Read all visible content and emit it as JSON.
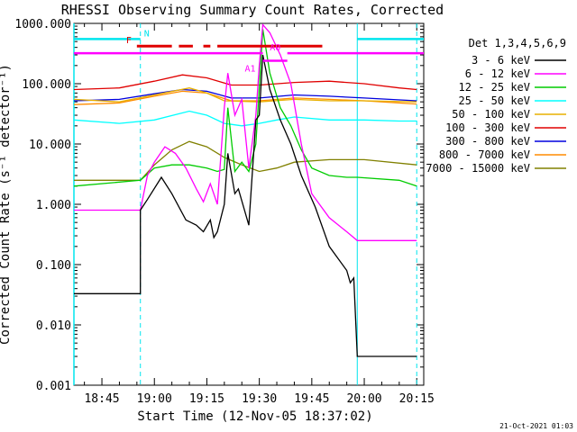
{
  "chart_data": {
    "type": "line",
    "title": "RHESSI Observing Summary Count Rates, Corrected",
    "xlabel": "Start Time (12-Nov-05 18:37:02)",
    "ylabel": "Corrected Count Rate (s⁻¹ detector⁻¹)",
    "yscale": "log",
    "ylim": [
      0.001,
      1000
    ],
    "xlim": [
      "18:37",
      "20:17"
    ],
    "x_ticks": [
      "18:45",
      "19:00",
      "19:15",
      "19:30",
      "19:45",
      "20:00",
      "20:15"
    ],
    "y_ticks": [
      "1000.000",
      "100.000",
      "10.000",
      "1.000",
      "0.100",
      "0.010",
      "0.001"
    ],
    "legend_title": "Det 1,3,4,5,6,9",
    "legend_position": "right",
    "footer": "21-Oct-2021 01:03",
    "annotations": [
      "N",
      "F",
      "A0",
      "A1"
    ],
    "flags": [
      {
        "label": "N",
        "color": "#00e5ee",
        "level": 550,
        "ranges": [
          [
            "18:37",
            "18:56"
          ],
          [
            "19:58",
            "20:17"
          ]
        ]
      },
      {
        "label": "F",
        "color": "#e00000",
        "level": 420,
        "ranges": [
          [
            "18:55",
            "19:05"
          ],
          [
            "19:07",
            "19:11"
          ],
          [
            "19:14",
            "19:16"
          ],
          [
            "19:18",
            "19:48"
          ]
        ]
      },
      {
        "label": "A0",
        "color": "#ff00ff",
        "level": 320,
        "ranges": [
          [
            "18:37",
            "19:31"
          ],
          [
            "19:38",
            "20:17"
          ]
        ]
      },
      {
        "label": "A1",
        "color": "#ff00ff",
        "level": 240,
        "ranges": [
          [
            "19:31",
            "19:38"
          ]
        ]
      }
    ],
    "attenuator_lines": [
      "18:56",
      "19:58",
      "20:15"
    ],
    "series": [
      {
        "name": "3 - 6 keV",
        "color": "#000000",
        "x": [
          "18:37",
          "18:56",
          "18:56",
          "18:58",
          "19:02",
          "19:05",
          "19:09",
          "19:12",
          "19:14",
          "19:16",
          "19:17",
          "19:18",
          "19:20",
          "19:21",
          "19:23",
          "19:24",
          "19:27",
          "19:29",
          "19:30",
          "19:31",
          "19:33",
          "19:36",
          "19:39",
          "19:42",
          "19:46",
          "19:50",
          "19:55",
          "19:56",
          "19:57",
          "19:58",
          "20:15"
        ],
        "y": [
          0.033,
          0.033,
          0.8,
          1.2,
          2.8,
          1.5,
          0.55,
          0.45,
          0.35,
          0.55,
          0.28,
          0.35,
          1.0,
          7,
          1.5,
          1.8,
          0.45,
          25,
          30,
          300,
          80,
          25,
          10,
          3,
          0.9,
          0.2,
          0.08,
          0.05,
          0.06,
          0.003,
          0.003
        ]
      },
      {
        "name": "6 - 12 keV",
        "color": "#ff00ff",
        "x": [
          "18:37",
          "18:56",
          "18:58",
          "19:00",
          "19:03",
          "19:06",
          "19:09",
          "19:12",
          "19:14",
          "19:16",
          "19:18",
          "19:20",
          "19:21",
          "19:23",
          "19:25",
          "19:27",
          "19:29",
          "19:30",
          "19:31",
          "19:33",
          "19:36",
          "19:39",
          "19:42",
          "19:45",
          "19:50",
          "19:55",
          "19:58",
          "20:05",
          "20:15"
        ],
        "y": [
          0.8,
          0.8,
          3,
          5,
          9,
          7,
          4,
          1.8,
          1.1,
          2.2,
          1.0,
          40,
          150,
          30,
          55,
          4,
          30,
          200,
          950,
          700,
          300,
          100,
          10,
          1.5,
          0.6,
          0.35,
          0.25,
          0.25,
          0.25
        ]
      },
      {
        "name": "12 - 25 keV",
        "color": "#00cc00",
        "x": [
          "18:37",
          "18:56",
          "19:00",
          "19:05",
          "19:10",
          "19:15",
          "19:18",
          "19:20",
          "19:21",
          "19:23",
          "19:25",
          "19:27",
          "19:29",
          "19:31",
          "19:33",
          "19:36",
          "19:39",
          "19:42",
          "19:45",
          "19:50",
          "19:55",
          "19:58",
          "20:10",
          "20:15"
        ],
        "y": [
          2.0,
          2.5,
          4.0,
          4.5,
          4.5,
          4.0,
          3.5,
          3.8,
          40,
          3.5,
          5,
          3.5,
          10,
          800,
          150,
          40,
          20,
          8,
          4,
          3.0,
          2.8,
          2.8,
          2.5,
          2.0
        ]
      },
      {
        "name": "25 - 50 keV",
        "color": "#00ffff",
        "x": [
          "18:37",
          "18:50",
          "19:00",
          "19:10",
          "19:15",
          "19:20",
          "19:25",
          "19:30",
          "19:35",
          "19:40",
          "19:50",
          "20:00",
          "20:10",
          "20:15"
        ],
        "y": [
          25,
          22,
          25,
          35,
          30,
          22,
          20,
          22,
          25,
          28,
          25,
          25,
          24,
          24
        ]
      },
      {
        "name": "50 - 100 keV",
        "color": "#e8b000",
        "x": [
          "18:37",
          "18:50",
          "19:00",
          "19:10",
          "19:15",
          "19:20",
          "19:30",
          "19:40",
          "19:50",
          "20:00",
          "20:15"
        ],
        "y": [
          55,
          50,
          65,
          85,
          70,
          52,
          50,
          55,
          52,
          52,
          50
        ]
      },
      {
        "name": "100 - 300 keV",
        "color": "#e00000",
        "x": [
          "18:37",
          "18:50",
          "19:00",
          "19:08",
          "19:15",
          "19:22",
          "19:30",
          "19:40",
          "19:50",
          "20:00",
          "20:10",
          "20:15"
        ],
        "y": [
          80,
          85,
          110,
          140,
          125,
          95,
          95,
          105,
          110,
          100,
          85,
          80
        ]
      },
      {
        "name": "300 - 800 keV",
        "color": "#0000dd",
        "x": [
          "18:37",
          "18:50",
          "19:00",
          "19:08",
          "19:15",
          "19:22",
          "19:30",
          "19:40",
          "19:50",
          "20:00",
          "20:15"
        ],
        "y": [
          52,
          55,
          68,
          80,
          75,
          58,
          58,
          65,
          62,
          58,
          52
        ]
      },
      {
        "name": "800 - 7000 keV",
        "color": "#ff8c00",
        "x": [
          "18:37",
          "18:50",
          "19:00",
          "19:08",
          "19:15",
          "19:22",
          "19:30",
          "19:40",
          "19:50",
          "20:00",
          "20:15"
        ],
        "y": [
          45,
          48,
          62,
          75,
          70,
          52,
          52,
          58,
          55,
          52,
          46
        ]
      },
      {
        "name": "7000 - 15000 keV",
        "color": "#808000",
        "x": [
          "18:37",
          "18:56",
          "19:00",
          "19:05",
          "19:10",
          "19:15",
          "19:20",
          "19:25",
          "19:30",
          "19:35",
          "19:40",
          "19:50",
          "20:00",
          "20:15"
        ],
        "y": [
          2.5,
          2.5,
          4.5,
          8,
          11,
          9,
          6,
          4.5,
          3.5,
          4,
          5,
          5.5,
          5.5,
          4.5
        ]
      }
    ]
  }
}
